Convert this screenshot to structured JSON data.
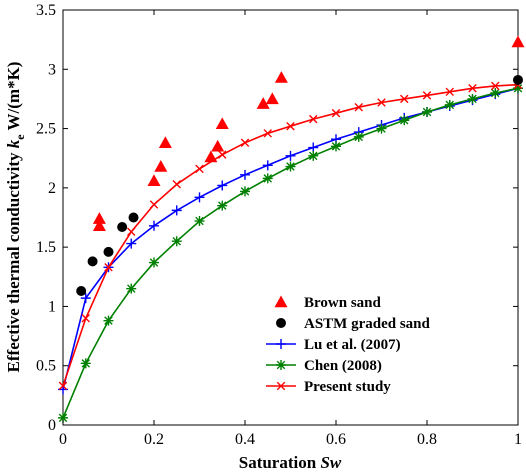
{
  "chart_data": {
    "type": "scatter",
    "title": "",
    "xlabel": "Saturation ",
    "xlabel_italic": "Sw",
    "ylabel": "Effective thermal conductivity ",
    "ylabel_italic": "k",
    "ylabel_sub": "e",
    "ylabel_unit": " W/(m*K)",
    "xlim": [
      0,
      1
    ],
    "ylim": [
      0,
      3.5
    ],
    "xticks": [
      0,
      0.2,
      0.4,
      0.6,
      0.8,
      1
    ],
    "xtick_labels": [
      "0",
      "0.2",
      "0.4",
      "0.6",
      "0.8",
      "1"
    ],
    "yticks": [
      0,
      0.5,
      1,
      1.5,
      2,
      2.5,
      3,
      3.5
    ],
    "ytick_labels": [
      "0",
      "0.5",
      "1",
      "1.5",
      "2",
      "2.5",
      "3",
      "3.5"
    ],
    "grid": false,
    "legend_position": "bottom-right",
    "series": [
      {
        "name": "Brown sand",
        "kind": "scatter",
        "marker": "triangle",
        "color": "#ff0000",
        "x": [
          0.08,
          0.08,
          0.2,
          0.215,
          0.225,
          0.325,
          0.34,
          0.35,
          0.44,
          0.46,
          0.48,
          1.0
        ],
        "y": [
          1.68,
          1.74,
          2.06,
          2.18,
          2.38,
          2.26,
          2.35,
          2.54,
          2.71,
          2.75,
          2.93,
          3.23
        ]
      },
      {
        "name": "ASTM graded sand",
        "kind": "scatter",
        "marker": "circle",
        "color": "#000000",
        "x": [
          0.04,
          0.065,
          0.1,
          0.13,
          0.155,
          1.0
        ],
        "y": [
          1.13,
          1.38,
          1.46,
          1.67,
          1.75,
          2.91
        ]
      },
      {
        "name": "Lu et al. (2007)",
        "kind": "line",
        "marker": "plus",
        "color": "#0000ff",
        "x": [
          0,
          0.05,
          0.1,
          0.15,
          0.2,
          0.25,
          0.3,
          0.35,
          0.4,
          0.45,
          0.5,
          0.55,
          0.6,
          0.65,
          0.7,
          0.75,
          0.8,
          0.85,
          0.9,
          0.95,
          1.0
        ],
        "y": [
          0.3,
          1.07,
          1.33,
          1.53,
          1.68,
          1.81,
          1.92,
          2.02,
          2.11,
          2.19,
          2.27,
          2.34,
          2.41,
          2.47,
          2.53,
          2.59,
          2.64,
          2.69,
          2.74,
          2.79,
          2.84
        ]
      },
      {
        "name": "Chen (2008)",
        "kind": "line",
        "marker": "asterisk",
        "color": "#008000",
        "x": [
          0,
          0.05,
          0.1,
          0.15,
          0.2,
          0.25,
          0.3,
          0.35,
          0.4,
          0.45,
          0.5,
          0.55,
          0.6,
          0.65,
          0.7,
          0.75,
          0.8,
          0.85,
          0.9,
          0.95,
          1.0
        ],
        "y": [
          0.06,
          0.52,
          0.88,
          1.15,
          1.37,
          1.55,
          1.72,
          1.85,
          1.97,
          2.08,
          2.18,
          2.27,
          2.35,
          2.43,
          2.5,
          2.57,
          2.64,
          2.7,
          2.75,
          2.8,
          2.84
        ]
      },
      {
        "name": "Present study",
        "kind": "line",
        "marker": "x",
        "color": "#ff0000",
        "x": [
          0,
          0.05,
          0.1,
          0.15,
          0.2,
          0.25,
          0.3,
          0.35,
          0.4,
          0.45,
          0.5,
          0.55,
          0.6,
          0.65,
          0.7,
          0.75,
          0.8,
          0.85,
          0.9,
          0.95,
          1.0
        ],
        "y": [
          0.33,
          0.9,
          1.33,
          1.63,
          1.86,
          2.03,
          2.16,
          2.28,
          2.38,
          2.46,
          2.52,
          2.58,
          2.63,
          2.68,
          2.72,
          2.75,
          2.78,
          2.81,
          2.84,
          2.86,
          2.87
        ]
      }
    ]
  }
}
